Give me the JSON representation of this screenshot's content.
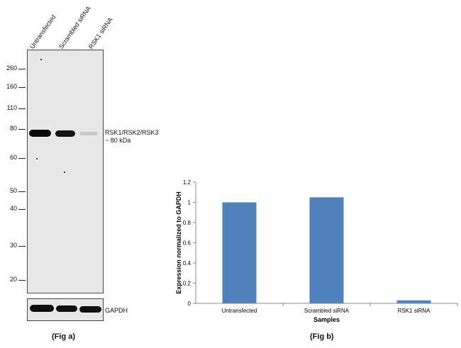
{
  "fig_a": {
    "lanes": [
      "Untransfected",
      "Scrambled siRNA",
      "RSK1 siRNA"
    ],
    "mw_markers": [
      "260",
      "160",
      "110",
      "80",
      "60",
      "50",
      "40",
      "30",
      "20"
    ],
    "target_label_line1": "RSK1/RSK2/RSK3",
    "target_label_line2": "~ 80 kDa",
    "loading_control_label": "GAPDH",
    "band_intensity": [
      1.0,
      0.95,
      0.12
    ],
    "caption": "(Fig a)"
  },
  "fig_b": {
    "caption": "(Fig b)"
  },
  "chart_data": {
    "type": "bar",
    "categories": [
      "Untransfected",
      "Scrambled siRNA",
      "RSK1 siRNA"
    ],
    "values": [
      1.0,
      1.05,
      0.03
    ],
    "ylabel": "Expression normalized to GAPDH",
    "xlabel": "Samples",
    "ylim": [
      0,
      1.2
    ],
    "yticks": [
      "0",
      "0.2",
      "0.4",
      "0.6",
      "0.8",
      "1",
      "1.2"
    ],
    "bar_color": "#4f81bd",
    "grid": false
  }
}
